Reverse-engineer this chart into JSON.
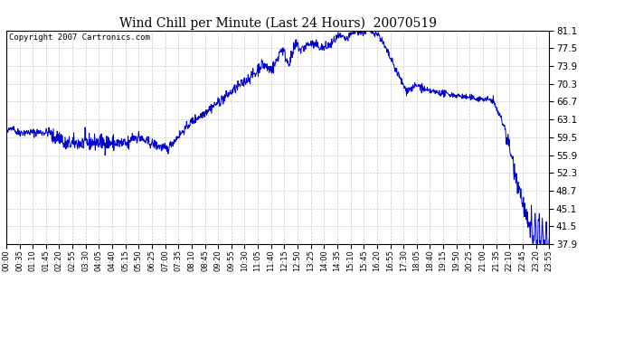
{
  "title": "Wind Chill per Minute (Last 24 Hours)  20070519",
  "copyright": "Copyright 2007 Cartronics.com",
  "background_color": "#ffffff",
  "plot_bg_color": "#ffffff",
  "line_color": "#0000cc",
  "grid_color": "#bbbbbb",
  "yticks": [
    37.9,
    41.5,
    45.1,
    48.7,
    52.3,
    55.9,
    59.5,
    63.1,
    66.7,
    70.3,
    73.9,
    77.5,
    81.1
  ],
  "ymin": 37.9,
  "ymax": 81.1,
  "xtick_labels": [
    "00:00",
    "00:35",
    "01:10",
    "01:45",
    "02:20",
    "02:55",
    "03:30",
    "04:05",
    "04:40",
    "05:15",
    "05:50",
    "06:25",
    "07:00",
    "07:35",
    "08:10",
    "08:45",
    "09:20",
    "09:55",
    "10:30",
    "11:05",
    "11:40",
    "12:15",
    "12:50",
    "13:25",
    "14:00",
    "14:35",
    "15:10",
    "15:45",
    "16:20",
    "16:55",
    "17:30",
    "18:05",
    "18:40",
    "19:15",
    "19:50",
    "20:25",
    "21:00",
    "21:35",
    "22:10",
    "22:45",
    "23:20",
    "23:55"
  ]
}
